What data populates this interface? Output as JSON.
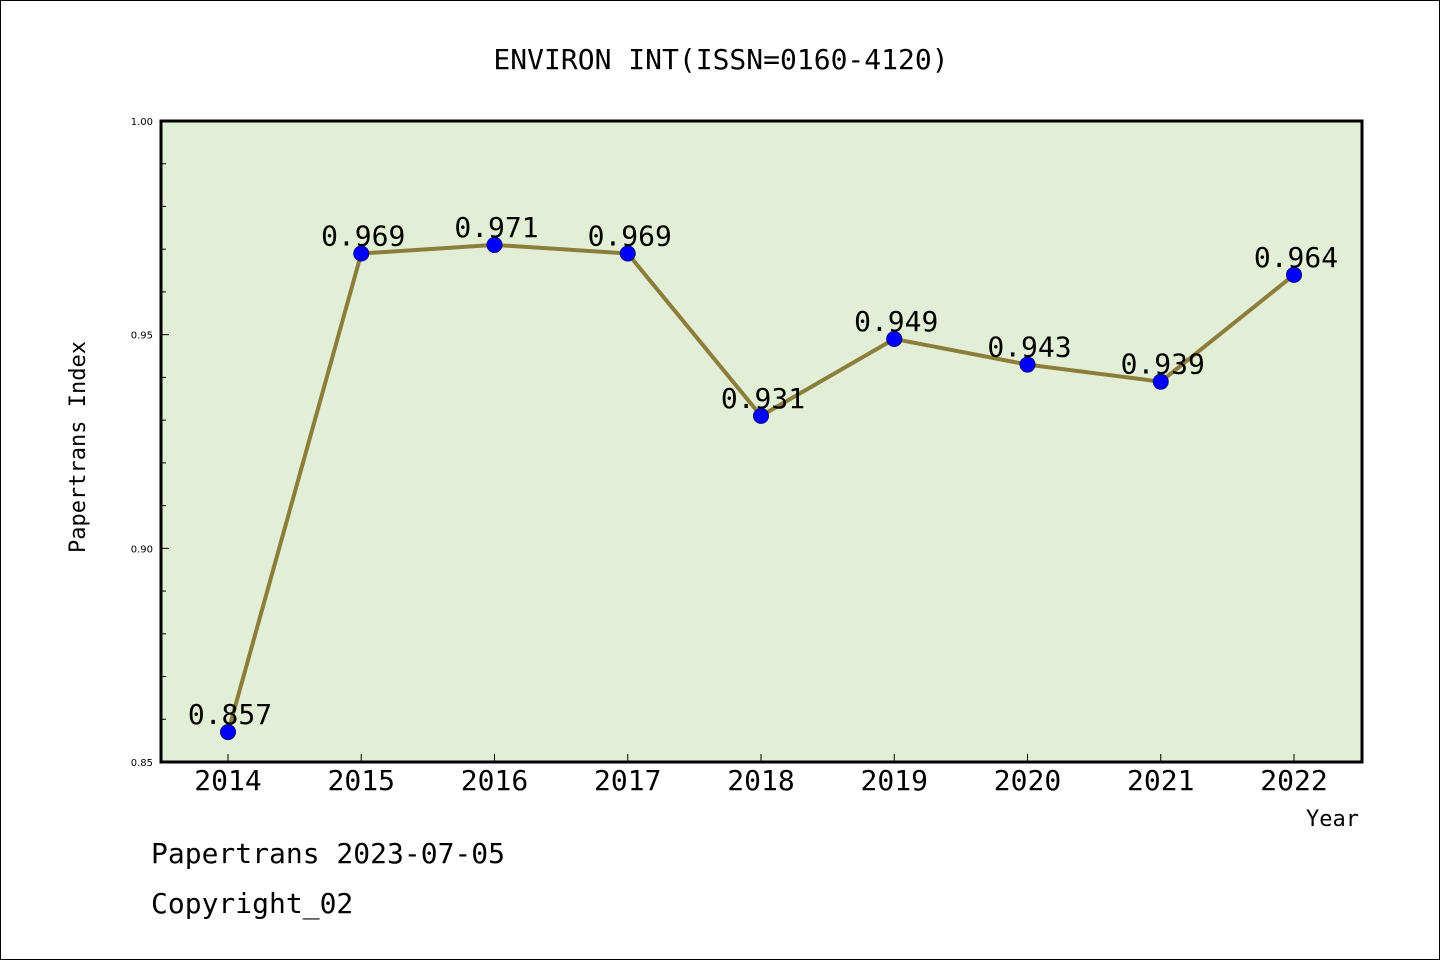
{
  "chart_data": {
    "type": "line",
    "title": "ENVIRON INT(ISSN=0160-4120)",
    "xlabel": "Year",
    "ylabel": "Papertrans Index",
    "categories": [
      "2014",
      "2015",
      "2016",
      "2017",
      "2018",
      "2019",
      "2020",
      "2021",
      "2022"
    ],
    "series": [
      {
        "values": [
          0.857,
          0.969,
          0.971,
          0.969,
          0.931,
          0.949,
          0.943,
          0.939,
          0.964
        ],
        "labels": [
          "0.857",
          "0.969",
          "0.971",
          "0.969",
          "0.931",
          "0.949",
          "0.943",
          "0.939",
          "0.964"
        ]
      }
    ],
    "ylim": [
      0.85,
      1.0
    ],
    "yticks": [
      0.85,
      0.9,
      0.95,
      1.0
    ],
    "ytick_labels": [
      "0.85",
      "0.90",
      "0.95",
      "1.00"
    ],
    "grid": false,
    "colors": {
      "plot_background": "#e2efd6",
      "line": "#8b7d3a",
      "marker": "#0000ff"
    }
  },
  "footer": {
    "source": "Papertrans 2023-07-05",
    "copyright": "Copyright_02"
  }
}
